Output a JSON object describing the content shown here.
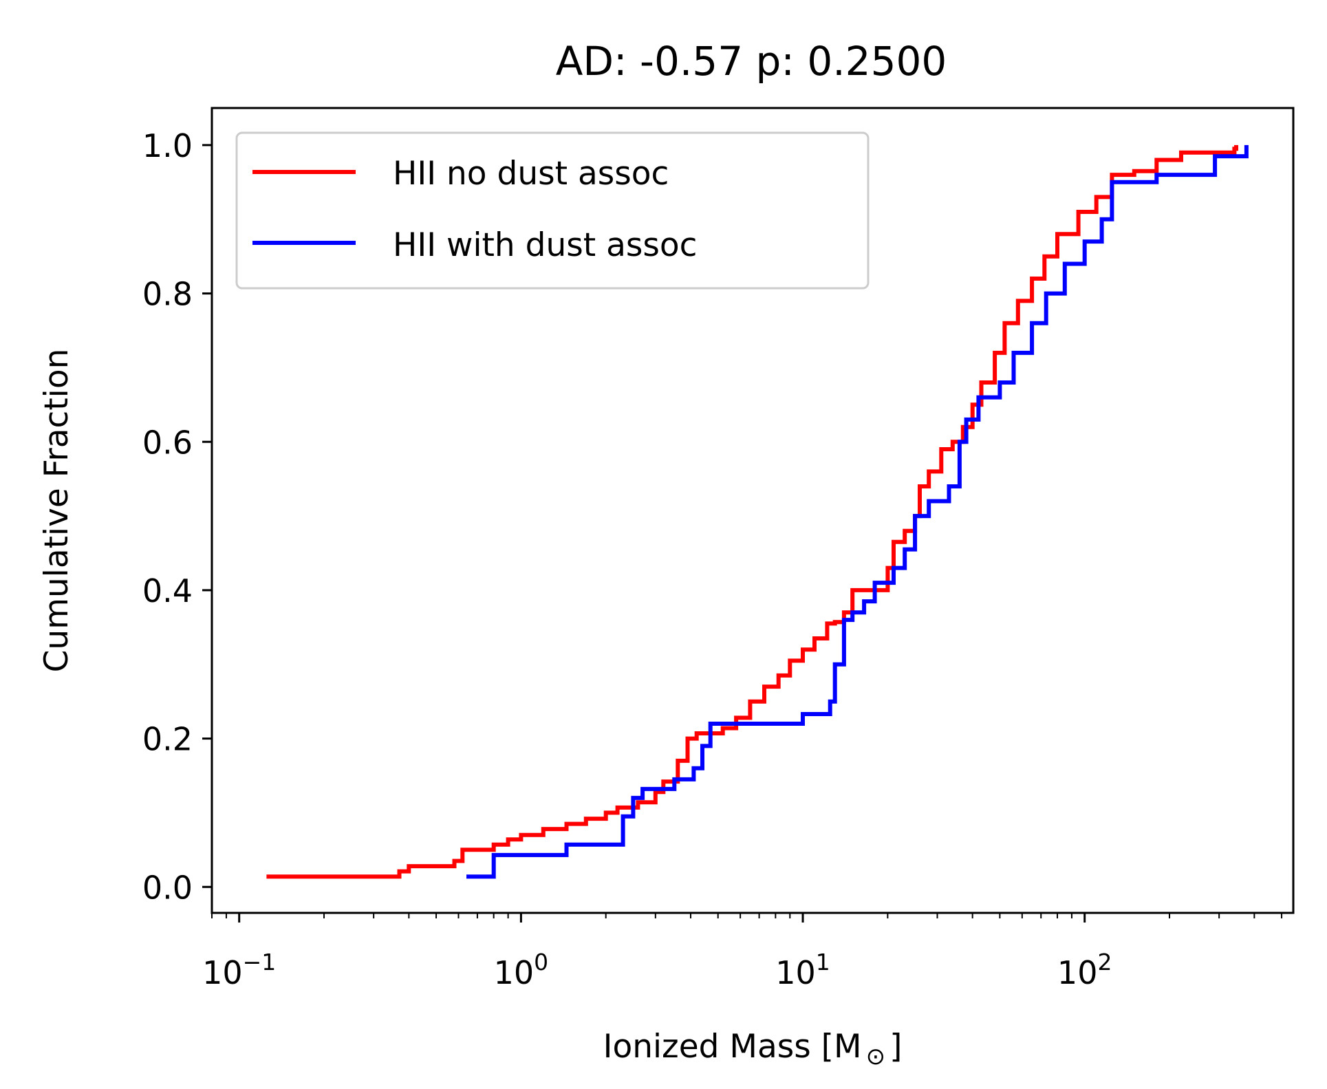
{
  "chart_data": {
    "type": "line",
    "step": true,
    "title": "AD: -0.57 p: 0.2500",
    "xlabel": "Ionized Mass [M",
    "xlabel_symbol": "⊙",
    "xlabel_suffix": "]",
    "ylabel": "Cumulative Fraction",
    "xscale": "log",
    "xlim": [
      0.08,
      550
    ],
    "ylim": [
      -0.035,
      1.05
    ],
    "xticks": [
      {
        "value": 0.1,
        "base": "10",
        "exp": "−1"
      },
      {
        "value": 1,
        "base": "10",
        "exp": "0"
      },
      {
        "value": 10,
        "base": "10",
        "exp": "1"
      },
      {
        "value": 100,
        "base": "10",
        "exp": "2"
      }
    ],
    "yticks": [
      {
        "value": 0.0,
        "label": "0.0"
      },
      {
        "value": 0.2,
        "label": "0.2"
      },
      {
        "value": 0.4,
        "label": "0.4"
      },
      {
        "value": 0.6,
        "label": "0.6"
      },
      {
        "value": 0.8,
        "label": "0.8"
      },
      {
        "value": 1.0,
        "label": "1.0"
      }
    ],
    "grid": false,
    "legend_position": "top-left",
    "series": [
      {
        "name": "HII no dust assoc",
        "color": "#ff0000",
        "points": [
          [
            0.125,
            0.014
          ],
          [
            0.35,
            0.014
          ],
          [
            0.37,
            0.021
          ],
          [
            0.4,
            0.028
          ],
          [
            0.55,
            0.028
          ],
          [
            0.58,
            0.035
          ],
          [
            0.62,
            0.05
          ],
          [
            0.75,
            0.05
          ],
          [
            0.8,
            0.057
          ],
          [
            0.9,
            0.064
          ],
          [
            1.0,
            0.07
          ],
          [
            1.2,
            0.078
          ],
          [
            1.45,
            0.085
          ],
          [
            1.7,
            0.092
          ],
          [
            2.0,
            0.1
          ],
          [
            2.2,
            0.107
          ],
          [
            2.6,
            0.114
          ],
          [
            3.0,
            0.128
          ],
          [
            3.2,
            0.142
          ],
          [
            3.6,
            0.17
          ],
          [
            3.9,
            0.2
          ],
          [
            4.2,
            0.207
          ],
          [
            5.0,
            0.207
          ],
          [
            5.2,
            0.214
          ],
          [
            5.8,
            0.228
          ],
          [
            6.5,
            0.25
          ],
          [
            7.3,
            0.27
          ],
          [
            8.2,
            0.285
          ],
          [
            9.0,
            0.305
          ],
          [
            10.0,
            0.32
          ],
          [
            11.0,
            0.335
          ],
          [
            12.2,
            0.355
          ],
          [
            13.0,
            0.357
          ],
          [
            14.0,
            0.37
          ],
          [
            15.0,
            0.4
          ],
          [
            18.0,
            0.4
          ],
          [
            20.0,
            0.43
          ],
          [
            21.0,
            0.465
          ],
          [
            23.0,
            0.48
          ],
          [
            25.0,
            0.5
          ],
          [
            26.0,
            0.54
          ],
          [
            28.0,
            0.56
          ],
          [
            31.0,
            0.59
          ],
          [
            34.0,
            0.6
          ],
          [
            37.0,
            0.62
          ],
          [
            40.0,
            0.65
          ],
          [
            43.0,
            0.68
          ],
          [
            48.0,
            0.72
          ],
          [
            52.0,
            0.76
          ],
          [
            58.0,
            0.79
          ],
          [
            65.0,
            0.82
          ],
          [
            72.0,
            0.85
          ],
          [
            80.0,
            0.88
          ],
          [
            95.0,
            0.91
          ],
          [
            110.0,
            0.93
          ],
          [
            125.0,
            0.96
          ],
          [
            150.0,
            0.965
          ],
          [
            180.0,
            0.98
          ],
          [
            220.0,
            0.99
          ],
          [
            340.0,
            0.995
          ],
          [
            345.0,
            1.0
          ]
        ]
      },
      {
        "name": "HII with dust assoc",
        "color": "#0000ff",
        "points": [
          [
            0.64,
            0.014
          ],
          [
            0.72,
            0.014
          ],
          [
            0.8,
            0.043
          ],
          [
            1.4,
            0.043
          ],
          [
            1.45,
            0.057
          ],
          [
            2.2,
            0.057
          ],
          [
            2.3,
            0.095
          ],
          [
            2.5,
            0.12
          ],
          [
            2.7,
            0.132
          ],
          [
            3.3,
            0.132
          ],
          [
            3.5,
            0.145
          ],
          [
            4.1,
            0.16
          ],
          [
            4.4,
            0.19
          ],
          [
            4.7,
            0.22
          ],
          [
            8.5,
            0.22
          ],
          [
            10.0,
            0.233
          ],
          [
            12.5,
            0.25
          ],
          [
            13.0,
            0.3
          ],
          [
            14.0,
            0.36
          ],
          [
            15.0,
            0.37
          ],
          [
            16.5,
            0.385
          ],
          [
            18.0,
            0.41
          ],
          [
            21.0,
            0.43
          ],
          [
            23.0,
            0.455
          ],
          [
            25.0,
            0.5
          ],
          [
            28.0,
            0.52
          ],
          [
            33.0,
            0.54
          ],
          [
            36.0,
            0.6
          ],
          [
            38.0,
            0.63
          ],
          [
            42.0,
            0.66
          ],
          [
            50.0,
            0.68
          ],
          [
            56.0,
            0.72
          ],
          [
            65.0,
            0.76
          ],
          [
            73.0,
            0.8
          ],
          [
            85.0,
            0.84
          ],
          [
            100.0,
            0.87
          ],
          [
            115.0,
            0.9
          ],
          [
            125.0,
            0.95
          ],
          [
            180.0,
            0.96
          ],
          [
            290.0,
            0.985
          ],
          [
            375.0,
            1.0
          ]
        ]
      }
    ]
  }
}
